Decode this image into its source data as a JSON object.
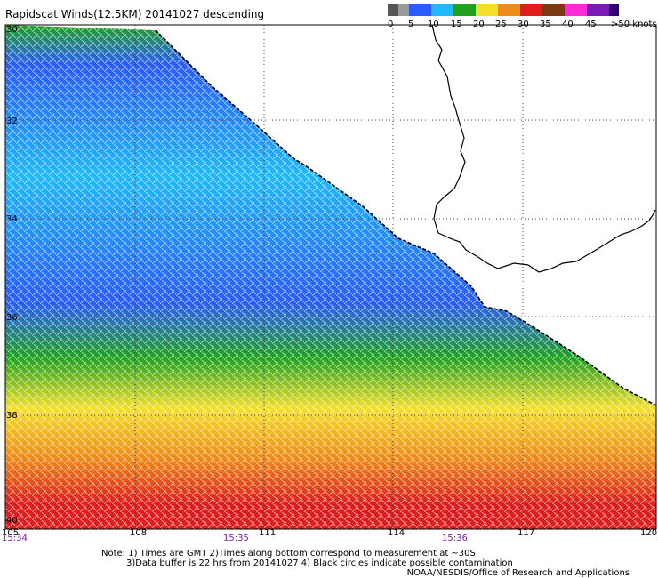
{
  "title": "Rapidscat Winds(12.5KM) 20141027 descending",
  "speed_scale": {
    "unit_label": ">50 knots",
    "labels": [
      "0",
      "5",
      "10",
      "15",
      "20",
      "25",
      "30",
      "35",
      "40",
      "45"
    ],
    "colors": [
      "#555555",
      "#9a9a9a",
      "#2a5cff",
      "#1fb9ff",
      "#1fa11f",
      "#f4df2a",
      "#f08a18",
      "#e01d1d",
      "#7a3b14",
      "#ff2bd4",
      "#7a1ab8",
      "#30007a"
    ]
  },
  "lat_labels": [
    "30",
    "32",
    "34",
    "36",
    "38",
    "40"
  ],
  "lon_labels": [
    "105",
    "108",
    "111",
    "114",
    "117",
    "120"
  ],
  "time_labels": [
    "15:34",
    "15:35",
    "15:36"
  ],
  "notes": [
    "Note: 1) Times are GMT 2)Times along bottom correspond to measurement at ~30S",
    "3)Data buffer is 22 hrs from 20141027 4) Black circles indicate possible contamination"
  ],
  "credit": "NOAA/NESDIS/Office of Research and Applications"
}
